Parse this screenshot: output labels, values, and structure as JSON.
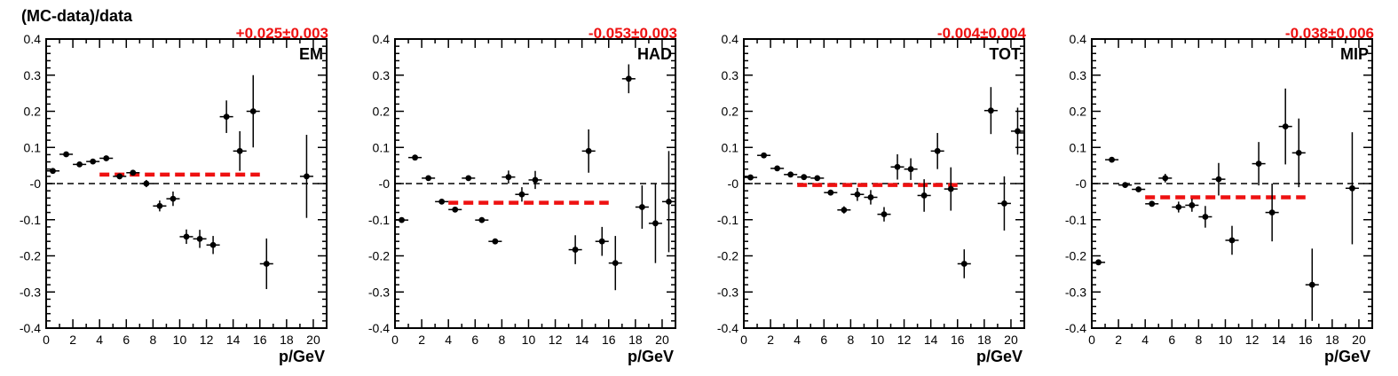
{
  "figure": {
    "ylabel": "(MC-data)/data"
  },
  "chart_data": [
    {
      "type": "scatter",
      "label": "EM",
      "fit_text": "+0.025±0.003",
      "fit": {
        "value": 0.025,
        "x_range": [
          4,
          16
        ]
      },
      "xlabel": "p/GeV",
      "xlim": [
        0,
        21
      ],
      "ylim": [
        -0.4,
        0.4
      ],
      "xticks": [
        0,
        2,
        4,
        6,
        8,
        10,
        12,
        14,
        16,
        18,
        20
      ],
      "yticks": [
        -0.4,
        -0.3,
        -0.2,
        -0.1,
        0,
        0.1,
        0.2,
        0.3,
        0.4
      ],
      "ytick_labels": [
        "-0.4",
        "-0.3",
        "-0.2",
        "-0.1",
        "-0",
        "0.1",
        "0.2",
        "0.3",
        "0.4"
      ],
      "reference_line": 0,
      "points": [
        {
          "x": 0.5,
          "y": 0.035,
          "err": 0.006
        },
        {
          "x": 1.5,
          "y": 0.081,
          "err": 0.006
        },
        {
          "x": 2.5,
          "y": 0.053,
          "err": 0.006
        },
        {
          "x": 3.5,
          "y": 0.061,
          "err": 0.006
        },
        {
          "x": 4.5,
          "y": 0.07,
          "err": 0.007
        },
        {
          "x": 5.5,
          "y": 0.02,
          "err": 0.008
        },
        {
          "x": 6.5,
          "y": 0.03,
          "err": 0.008
        },
        {
          "x": 7.5,
          "y": 0.0,
          "err": 0.01
        },
        {
          "x": 8.5,
          "y": -0.062,
          "err": 0.015
        },
        {
          "x": 9.5,
          "y": -0.042,
          "err": 0.02
        },
        {
          "x": 10.5,
          "y": -0.147,
          "err": 0.02
        },
        {
          "x": 11.5,
          "y": -0.153,
          "err": 0.025
        },
        {
          "x": 12.5,
          "y": -0.17,
          "err": 0.025
        },
        {
          "x": 13.5,
          "y": 0.185,
          "err": 0.045
        },
        {
          "x": 14.5,
          "y": 0.09,
          "err": 0.055
        },
        {
          "x": 15.5,
          "y": 0.2,
          "err": 0.1
        },
        {
          "x": 16.5,
          "y": -0.222,
          "err": 0.07
        },
        {
          "x": 19.5,
          "y": 0.02,
          "err": 0.115
        }
      ]
    },
    {
      "type": "scatter",
      "label": "HAD",
      "fit_text": "-0.053±0.003",
      "fit": {
        "value": -0.053,
        "x_range": [
          4,
          16
        ]
      },
      "xlabel": "p/GeV",
      "xlim": [
        0,
        21
      ],
      "ylim": [
        -0.4,
        0.4
      ],
      "xticks": [
        0,
        2,
        4,
        6,
        8,
        10,
        12,
        14,
        16,
        18,
        20
      ],
      "yticks": [
        -0.4,
        -0.3,
        -0.2,
        -0.1,
        0,
        0.1,
        0.2,
        0.3,
        0.4
      ],
      "ytick_labels": [
        "-0.4",
        "-0.3",
        "-0.2",
        "-0.1",
        "-0",
        "0.1",
        "0.2",
        "0.3",
        "0.4"
      ],
      "reference_line": 0,
      "points": [
        {
          "x": 0.5,
          "y": -0.101,
          "err": 0.006
        },
        {
          "x": 1.5,
          "y": 0.072,
          "err": 0.006
        },
        {
          "x": 2.5,
          "y": 0.015,
          "err": 0.006
        },
        {
          "x": 3.5,
          "y": -0.05,
          "err": 0.006
        },
        {
          "x": 4.5,
          "y": -0.072,
          "err": 0.007
        },
        {
          "x": 5.5,
          "y": 0.015,
          "err": 0.007
        },
        {
          "x": 6.5,
          "y": -0.101,
          "err": 0.008
        },
        {
          "x": 7.5,
          "y": -0.16,
          "err": 0.008
        },
        {
          "x": 8.5,
          "y": 0.018,
          "err": 0.018
        },
        {
          "x": 9.5,
          "y": -0.03,
          "err": 0.02
        },
        {
          "x": 10.5,
          "y": 0.01,
          "err": 0.025
        },
        {
          "x": 13.5,
          "y": -0.183,
          "err": 0.04
        },
        {
          "x": 14.5,
          "y": 0.09,
          "err": 0.06
        },
        {
          "x": 15.5,
          "y": -0.16,
          "err": 0.04
        },
        {
          "x": 16.5,
          "y": -0.22,
          "err": 0.075
        },
        {
          "x": 17.5,
          "y": 0.29,
          "err": 0.04
        },
        {
          "x": 18.5,
          "y": -0.065,
          "err": 0.06
        },
        {
          "x": 19.5,
          "y": -0.11,
          "err": 0.11
        },
        {
          "x": 20.5,
          "y": -0.05,
          "err": 0.14
        }
      ]
    },
    {
      "type": "scatter",
      "label": "TOT",
      "fit_text": "-0.004±0.004",
      "fit": {
        "value": -0.004,
        "x_range": [
          4,
          16
        ]
      },
      "xlabel": "p/GeV",
      "xlim": [
        0,
        21
      ],
      "ylim": [
        -0.4,
        0.4
      ],
      "xticks": [
        0,
        2,
        4,
        6,
        8,
        10,
        12,
        14,
        16,
        18,
        20
      ],
      "yticks": [
        -0.4,
        -0.3,
        -0.2,
        -0.1,
        0,
        0.1,
        0.2,
        0.3,
        0.4
      ],
      "ytick_labels": [
        "-0.4",
        "-0.3",
        "-0.2",
        "-0.1",
        "-0",
        "0.1",
        "0.2",
        "0.3",
        "0.4"
      ],
      "reference_line": 0,
      "points": [
        {
          "x": 0.5,
          "y": 0.017,
          "err": 0.006
        },
        {
          "x": 1.5,
          "y": 0.078,
          "err": 0.006
        },
        {
          "x": 2.5,
          "y": 0.042,
          "err": 0.006
        },
        {
          "x": 3.5,
          "y": 0.025,
          "err": 0.006
        },
        {
          "x": 4.5,
          "y": 0.018,
          "err": 0.006
        },
        {
          "x": 5.5,
          "y": 0.015,
          "err": 0.007
        },
        {
          "x": 6.5,
          "y": -0.025,
          "err": 0.008
        },
        {
          "x": 7.5,
          "y": -0.073,
          "err": 0.01
        },
        {
          "x": 8.5,
          "y": -0.03,
          "err": 0.018
        },
        {
          "x": 9.5,
          "y": -0.038,
          "err": 0.02
        },
        {
          "x": 10.5,
          "y": -0.085,
          "err": 0.02
        },
        {
          "x": 11.5,
          "y": 0.046,
          "err": 0.035
        },
        {
          "x": 12.5,
          "y": 0.04,
          "err": 0.03
        },
        {
          "x": 13.5,
          "y": -0.033,
          "err": 0.045
        },
        {
          "x": 14.5,
          "y": 0.09,
          "err": 0.05
        },
        {
          "x": 15.5,
          "y": -0.015,
          "err": 0.06
        },
        {
          "x": 16.5,
          "y": -0.222,
          "err": 0.04
        },
        {
          "x": 18.5,
          "y": 0.202,
          "err": 0.065
        },
        {
          "x": 19.5,
          "y": -0.055,
          "err": 0.075
        },
        {
          "x": 20.5,
          "y": 0.145,
          "err": 0.065
        }
      ]
    },
    {
      "type": "scatter",
      "label": "MIP",
      "fit_text": "-0.038±0.006",
      "fit": {
        "value": -0.038,
        "x_range": [
          4,
          16
        ]
      },
      "xlabel": "p/GeV",
      "xlim": [
        0,
        21
      ],
      "ylim": [
        -0.4,
        0.4
      ],
      "xticks": [
        0,
        2,
        4,
        6,
        8,
        10,
        12,
        14,
        16,
        18,
        20
      ],
      "yticks": [
        -0.4,
        -0.3,
        -0.2,
        -0.1,
        0,
        0.1,
        0.2,
        0.3,
        0.4
      ],
      "ytick_labels": [
        "-0.4",
        "-0.3",
        "-0.2",
        "-0.1",
        "-0",
        "0.1",
        "0.2",
        "0.3",
        "0.4"
      ],
      "reference_line": 0,
      "points": [
        {
          "x": 0.5,
          "y": -0.218,
          "err": 0.006
        },
        {
          "x": 1.5,
          "y": 0.066,
          "err": 0.006
        },
        {
          "x": 2.5,
          "y": -0.004,
          "err": 0.006
        },
        {
          "x": 3.5,
          "y": -0.016,
          "err": 0.006
        },
        {
          "x": 4.5,
          "y": -0.056,
          "err": 0.008
        },
        {
          "x": 5.5,
          "y": 0.015,
          "err": 0.012
        },
        {
          "x": 6.5,
          "y": -0.065,
          "err": 0.015
        },
        {
          "x": 7.5,
          "y": -0.06,
          "err": 0.018
        },
        {
          "x": 8.5,
          "y": -0.092,
          "err": 0.03
        },
        {
          "x": 9.5,
          "y": 0.012,
          "err": 0.045
        },
        {
          "x": 10.5,
          "y": -0.157,
          "err": 0.04
        },
        {
          "x": 12.5,
          "y": 0.055,
          "err": 0.06
        },
        {
          "x": 13.5,
          "y": -0.08,
          "err": 0.08
        },
        {
          "x": 14.5,
          "y": 0.158,
          "err": 0.105
        },
        {
          "x": 15.5,
          "y": 0.085,
          "err": 0.095
        },
        {
          "x": 16.5,
          "y": -0.28,
          "err": 0.1
        },
        {
          "x": 19.5,
          "y": -0.013,
          "err": 0.155
        }
      ]
    }
  ]
}
